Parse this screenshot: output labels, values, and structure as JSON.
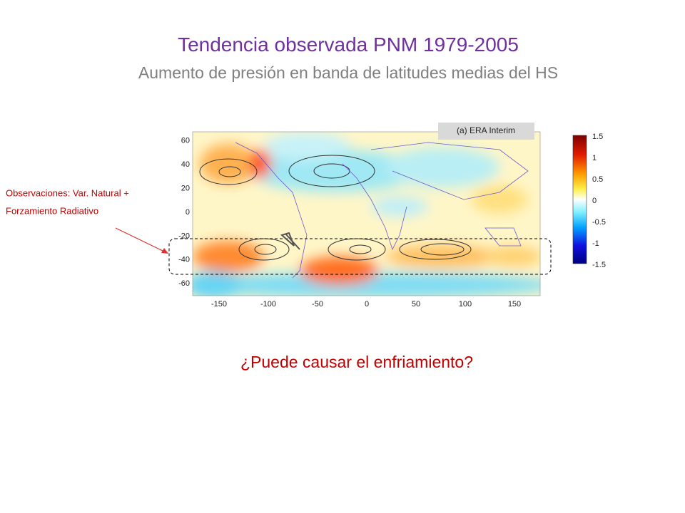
{
  "header": {
    "title": "Tendencia  observada PNM 1979-2005",
    "subtitle": "Aumento de presión en banda de latitudes medias del HS"
  },
  "map": {
    "panel_label": "(a) ERA Interim",
    "lat_ticks": [
      60,
      40,
      20,
      0,
      -20,
      -40,
      -60
    ],
    "lon_ticks": [
      -150,
      -100,
      -50,
      0,
      50,
      100,
      150
    ],
    "colorbar_ticks": [
      1.5,
      1,
      0.5,
      0,
      -0.5,
      -1,
      -1.5
    ]
  },
  "annotation": {
    "line1": "Observaciones: Var. Natural +",
    "line2": "Forzamiento Radiativo"
  },
  "question": "¿Puede causar el enfriamiento?"
}
